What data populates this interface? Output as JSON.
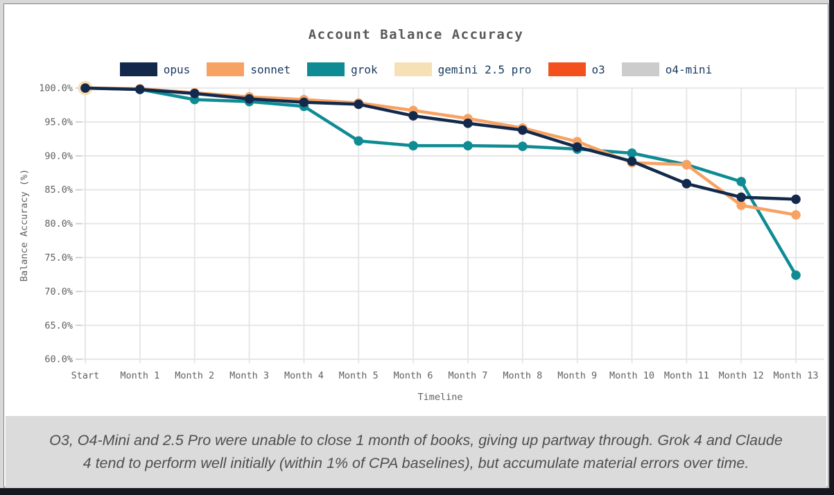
{
  "colors": {
    "frame_outer_dark": "#17171f",
    "frame_bevel": "#d8d8d8",
    "panel_bg": "#ffffff",
    "grid": "#e4e4e4",
    "tick_dash": "#cccccc",
    "tick_text": "#606060",
    "title_text": "#595959",
    "legend_text": "#17375e",
    "footer_bg": "#dbdbdb",
    "footer_text": "#4e4e4e"
  },
  "chart_data": {
    "type": "line",
    "title": "Account Balance Accuracy",
    "xlabel": "Timeline",
    "ylabel": "Balance Accuracy (%)",
    "categories": [
      "Start",
      "Month 1",
      "Month 2",
      "Month 3",
      "Month 4",
      "Month 5",
      "Month 6",
      "Month 7",
      "Month 8",
      "Month 9",
      "Month 10",
      "Month 11",
      "Month 12",
      "Month 13"
    ],
    "ylim": [
      60,
      100
    ],
    "yticks": [
      100,
      95,
      90,
      85,
      80,
      75,
      70,
      65,
      60
    ],
    "ytick_suffix": "%",
    "grid": true,
    "legend_position": "top-center",
    "series": [
      {
        "name": "opus",
        "color": "#13294c",
        "values": [
          100.0,
          99.8,
          99.2,
          98.4,
          97.9,
          97.6,
          95.9,
          94.8,
          93.8,
          91.3,
          89.2,
          85.9,
          83.9,
          83.6
        ]
      },
      {
        "name": "sonnet",
        "color": "#f7a263",
        "values": [
          100.0,
          99.9,
          99.3,
          98.7,
          98.3,
          97.8,
          96.7,
          95.5,
          94.1,
          92.1,
          89.0,
          88.7,
          82.7,
          81.3
        ]
      },
      {
        "name": "grok",
        "color": "#0e8b93",
        "values": [
          100.0,
          99.8,
          98.3,
          98.0,
          97.3,
          92.2,
          91.5,
          91.5,
          91.4,
          91.0,
          90.4,
          88.7,
          86.2,
          72.4
        ]
      },
      {
        "name": "gemini 2.5 pro",
        "color": "#f6e0b5",
        "values": [
          100.0
        ]
      },
      {
        "name": "o3",
        "color": "#f4501d",
        "values": [
          100.0
        ]
      },
      {
        "name": "o4-mini",
        "color": "#cccccc",
        "values": [
          100.0
        ]
      }
    ]
  },
  "footer": {
    "lines": [
      "O3, O4-Mini and 2.5 Pro were unable to close 1 month of books, giving up partway through. Grok 4 and Claude",
      "4 tend to perform well initially (within 1% of CPA baselines), but accumulate material errors over time."
    ]
  }
}
